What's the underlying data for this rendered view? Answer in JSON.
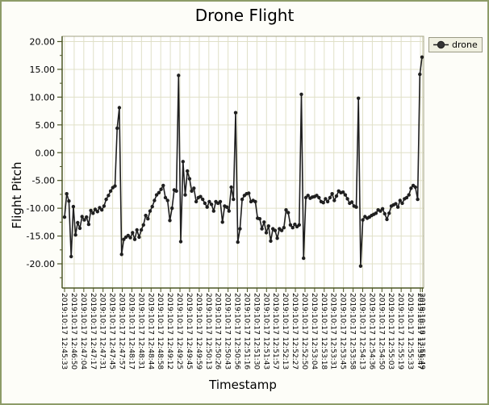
{
  "window": {
    "background": "#fdfdf8",
    "border_color": "#8d9c68"
  },
  "chart_data": {
    "type": "line",
    "title": "Drone Flight",
    "xlabel": "Timestamp",
    "ylabel": "Flight Pitch",
    "grid": true,
    "legend": {
      "position": "right",
      "entries": [
        "drone"
      ]
    },
    "ylim": [
      -20,
      20
    ],
    "y_tick_values": [
      20,
      15,
      10,
      5,
      0,
      -5,
      -10,
      -15,
      -20
    ],
    "y_tick_labels": [
      "20.00",
      "15.00",
      "10.00",
      "5.00",
      "0.00",
      "-5.00",
      "-10.00",
      "-15.00",
      "-20.00"
    ],
    "x_tick_labels": [
      "2019:10:17 12:45:33",
      "2019:10:17 12:46:50",
      "2019:10:17 12:47:04",
      "2019:10:17 12:47:17",
      "2019:10:17 12:47:31",
      "2019:10:17 12:47:45",
      "2019:10:17 12:47:57",
      "2019:10:17 12:48:17",
      "2019:10:17 12:48:31",
      "2019:10:17 12:48:44",
      "2019:10:17 12:48:58",
      "2019:10:17 12:49:12",
      "2019:10:17 12:49:25",
      "2019:10:17 12:49:45",
      "2019:10:17 12:49:59",
      "2019:10:17 12:50:13",
      "2019:10:17 12:50:26",
      "2019:10:17 12:50:43",
      "2019:10:17 12:50:56",
      "2019:10:17 12:51:16",
      "2019:10:17 12:51:30",
      "2019:10:17 12:51:43",
      "2019:10:17 12:51:57",
      "2019:10:17 12:52:13",
      "2019:10:17 12:52:27",
      "2019:10:17 12:52:50",
      "2019:10:17 12:53:04",
      "2019:10:17 12:53:18",
      "2019:10:17 12:53:31",
      "2019:10:17 12:53:45",
      "2019:10:17 12:53:58",
      "2019:10:17 12:54:13",
      "2019:10:17 12:54:36",
      "2019:10:17 12:54:50",
      "2019:10:17 12:55:03",
      "2019:10:17 12:55:19",
      "2019:10:17 12:55:33",
      "2019:10:17 12:55:47",
      "2019:10:18 13:55:49"
    ],
    "series": [
      {
        "name": "drone",
        "color": "#1f1f1f",
        "marker": "circle",
        "values": [
          -11.6,
          -7.4,
          -8.7,
          -18.7,
          -9.7,
          -14.8,
          -12.6,
          -13.6,
          -11.5,
          -12.1,
          -11.6,
          -12.9,
          -10.4,
          -10.9,
          -10.2,
          -10.6,
          -9.9,
          -10.3,
          -9.6,
          -8.4,
          -7.7,
          -6.9,
          -6.3,
          -6.0,
          4.4,
          8.1,
          -18.3,
          -15.6,
          -15.2,
          -14.9,
          -15.3,
          -14.4,
          -15.6,
          -13.9,
          -15.2,
          -13.9,
          -13.0,
          -11.3,
          -11.9,
          -10.5,
          -9.7,
          -8.6,
          -7.6,
          -7.2,
          -6.6,
          -5.9,
          -8.1,
          -8.6,
          -12.2,
          -10.0,
          -6.7,
          -6.9,
          13.9,
          -16.0,
          -1.6,
          -7.6,
          -3.3,
          -4.7,
          -6.9,
          -6.4,
          -8.8,
          -8.1,
          -7.9,
          -8.4,
          -9.1,
          -9.8,
          -8.8,
          -9.3,
          -10.5,
          -8.8,
          -9.1,
          -8.8,
          -12.5,
          -9.6,
          -9.8,
          -10.5,
          -6.2,
          -8.4,
          7.2,
          -16.1,
          -13.7,
          -8.4,
          -7.7,
          -7.4,
          -7.3,
          -8.8,
          -8.6,
          -8.8,
          -11.8,
          -11.9,
          -13.7,
          -12.5,
          -14.4,
          -13.2,
          -15.9,
          -13.7,
          -14.0,
          -15.4,
          -13.7,
          -14.0,
          -13.5,
          -10.3,
          -10.8,
          -13.0,
          -13.5,
          -12.9,
          -13.3,
          -13.0,
          10.5,
          -19.0,
          -8.1,
          -7.7,
          -8.2,
          -8.0,
          -7.9,
          -7.7,
          -8.1,
          -8.8,
          -9.0,
          -8.3,
          -8.8,
          -8.1,
          -7.4,
          -8.6,
          -7.8,
          -6.9,
          -7.2,
          -7.1,
          -7.6,
          -8.3,
          -9.1,
          -8.9,
          -9.6,
          -9.8,
          9.8,
          -20.4,
          -12.1,
          -11.5,
          -11.8,
          -11.6,
          -11.3,
          -11.1,
          -10.9,
          -10.3,
          -10.5,
          -10.1,
          -11.0,
          -12.0,
          -10.9,
          -9.6,
          -9.4,
          -9.2,
          -9.8,
          -8.6,
          -9.1,
          -8.3,
          -8.1,
          -7.6,
          -6.4,
          -5.9,
          -6.2,
          -8.4,
          14.1,
          17.2
        ]
      }
    ],
    "colors": {
      "plot_bg": "#ffffff",
      "grid": "#e0e0c8",
      "axis": "#4c5626",
      "outline": "#a3a383",
      "legend_bg": "#f0f0e1",
      "legend_border": "#9b9b86",
      "text": "#000000"
    }
  }
}
